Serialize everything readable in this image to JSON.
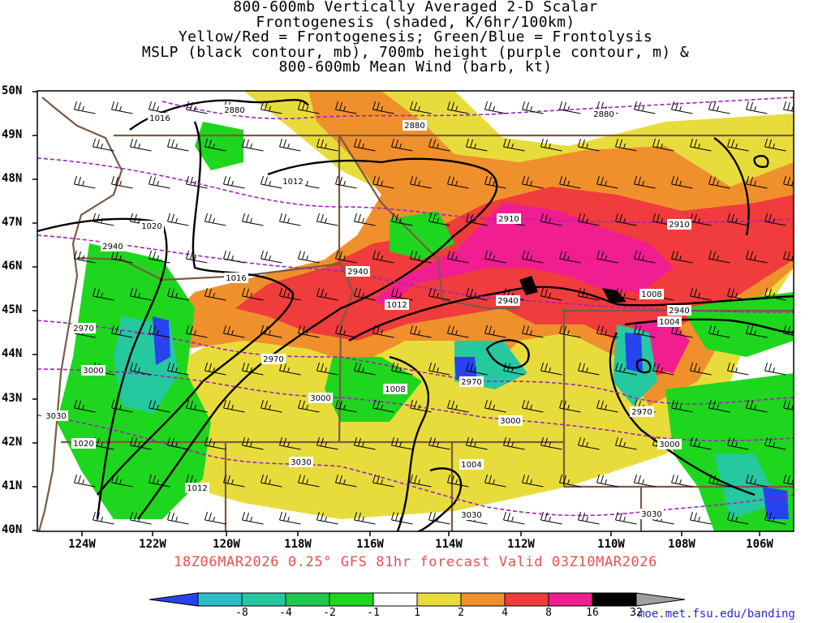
{
  "title_lines": [
    "800-600mb Vertically Averaged 2-D Scalar",
    "Frontogenesis (shaded, K/6hr/100km)",
    "Yellow/Red = Frontogenesis;  Green/Blue = Frontolysis",
    "MSLP (black contour, mb), 700mb height (purple contour, m) &",
    "800-600mb Mean Wind (barb, kt)"
  ],
  "lat_labels": [
    "50N",
    "49N",
    "48N",
    "47N",
    "46N",
    "45N",
    "44N",
    "43N",
    "42N",
    "41N",
    "40N"
  ],
  "lon_labels": [
    "124W",
    "122W",
    "120W",
    "118W",
    "116W",
    "114W",
    "112W",
    "110W",
    "108W",
    "106W"
  ],
  "footer": "18Z06MAR2026 0.25° GFS 81hr forecast Valid 03Z10MAR2026",
  "colorbar": {
    "labels": [
      "-8",
      "-4",
      "-2",
      "-1",
      "1",
      "2",
      "4",
      "8",
      "16",
      "32"
    ],
    "colors": [
      "#2743f0",
      "#2bbcc8",
      "#26c8a0",
      "#21c84e",
      "#1ed61e",
      "#ffffff",
      "#e8dc3c",
      "#f0902c",
      "#f03c3c",
      "#f01e90",
      "#000000",
      "#a0a0a0"
    ]
  },
  "credit": "moe.met.fsu.edu/banding",
  "mslp_labels": [
    "1016",
    "1012",
    "1020",
    "1016",
    "1012",
    "1008",
    "1004",
    "1008",
    "1020",
    "1012",
    "1004"
  ],
  "height_labels": [
    "2880",
    "2880",
    "2880",
    "2910",
    "2910",
    "2940",
    "2940",
    "2940",
    "2940",
    "2970",
    "2970",
    "2970",
    "2970",
    "3000",
    "3000",
    "3000",
    "3000",
    "3030",
    "3030",
    "3030",
    "3030"
  ]
}
